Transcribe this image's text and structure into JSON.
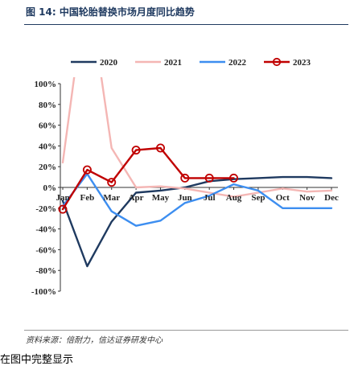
{
  "figure": {
    "title": "图 14:  中国轮胎替换市场月度同比趋势",
    "source": "资料来源：倍耐力，信达证券研发中心",
    "footnote": "在图中完整显示"
  },
  "chart_data": {
    "type": "line",
    "title": "",
    "xlabel": "",
    "ylabel": "",
    "categories": [
      "Jan",
      "Feb",
      "Mar",
      "Apr",
      "May",
      "Jun",
      "Jul",
      "Aug",
      "Sep",
      "Oct",
      "Nov",
      "Dec"
    ],
    "y_ticks": [
      "100%",
      "80%",
      "60%",
      "40%",
      "20%",
      "0%",
      "-20%",
      "-40%",
      "-60%",
      "-80%",
      "-100%"
    ],
    "ylim": [
      -100,
      100
    ],
    "grid": false,
    "legend_position": "top",
    "series": [
      {
        "name": "2020",
        "color": "#1f3a60",
        "markers": false,
        "values": [
          -13,
          -76,
          -33,
          -5,
          -3,
          0,
          6,
          8,
          9,
          10,
          10,
          9
        ]
      },
      {
        "name": "2021",
        "color": "#f4b6b4",
        "markers": false,
        "values": [
          24,
          200,
          38,
          0,
          1,
          -1,
          -5,
          -9,
          -5,
          -1,
          -4,
          -3
        ]
      },
      {
        "name": "2022",
        "color": "#3d8ef0",
        "markers": false,
        "values": [
          -18,
          13,
          -23,
          -37,
          -32,
          -15,
          -8,
          3,
          -3,
          -20,
          -20,
          -20
        ]
      },
      {
        "name": "2023",
        "color": "#c00000",
        "markers": true,
        "values": [
          -21,
          17,
          5,
          36,
          38,
          9,
          9,
          9,
          null,
          null,
          null,
          null
        ]
      }
    ]
  }
}
